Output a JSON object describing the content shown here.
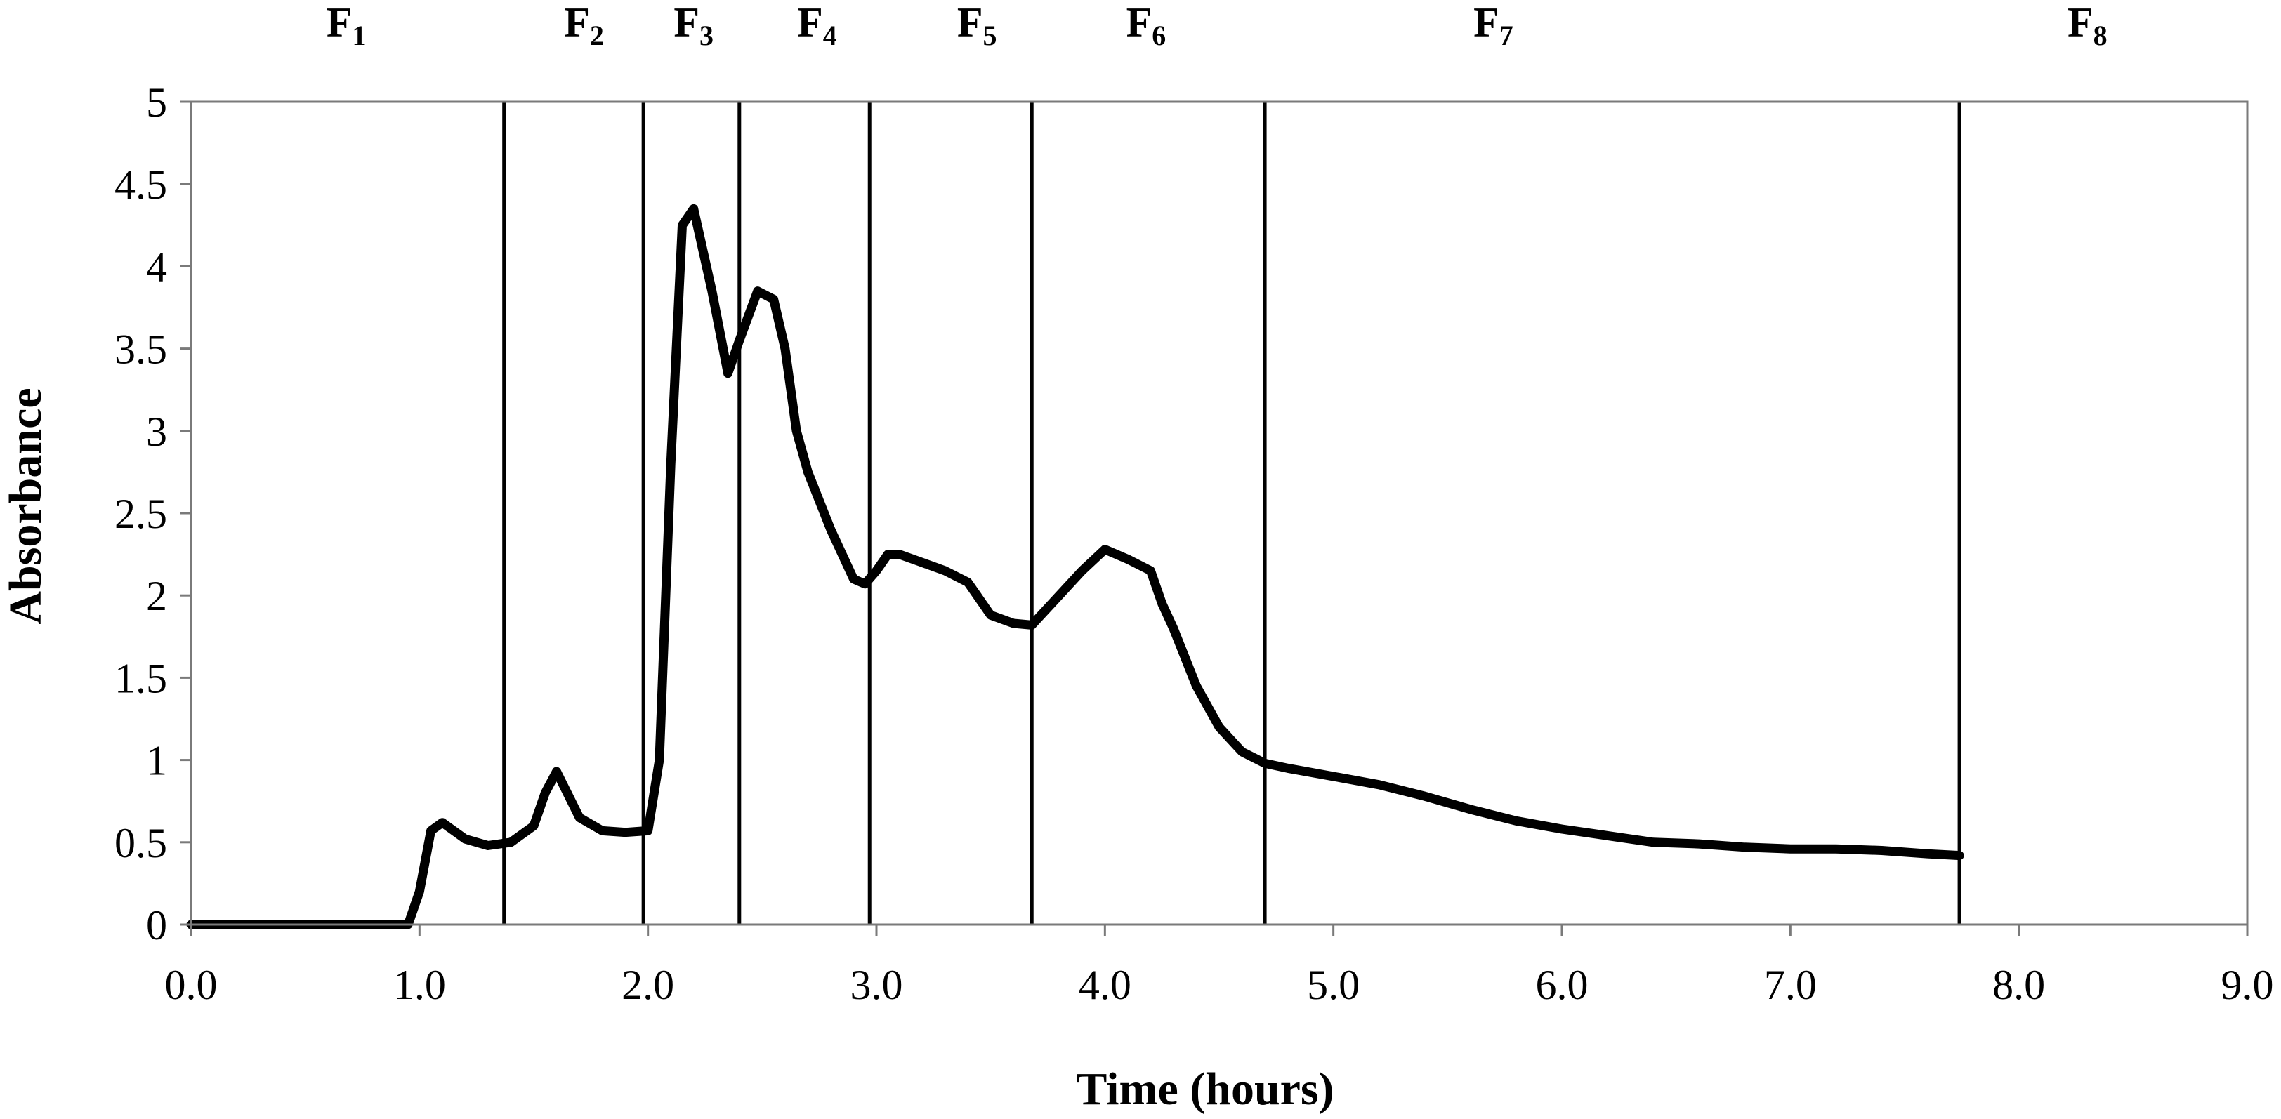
{
  "chart_data": {
    "type": "line",
    "xlabel": "Time (hours)",
    "ylabel": "Absorbance",
    "xlim": [
      0,
      9
    ],
    "ylim": [
      0,
      5
    ],
    "x_ticks": [
      "0.0",
      "1.0",
      "2.0",
      "3.0",
      "4.0",
      "5.0",
      "6.0",
      "7.0",
      "8.0",
      "9.0"
    ],
    "y_ticks": [
      "0",
      "0.5",
      "1",
      "1.5",
      "2",
      "2.5",
      "3",
      "3.5",
      "4",
      "4.5",
      "5"
    ],
    "grid": false,
    "series": [
      {
        "color": "#000000",
        "x": [
          0.0,
          0.1,
          0.3,
          0.5,
          0.7,
          0.9,
          0.95,
          1.0,
          1.05,
          1.1,
          1.2,
          1.3,
          1.4,
          1.5,
          1.55,
          1.6,
          1.7,
          1.8,
          1.9,
          2.0,
          2.05,
          2.1,
          2.15,
          2.2,
          2.28,
          2.35,
          2.4,
          2.48,
          2.55,
          2.6,
          2.65,
          2.7,
          2.8,
          2.9,
          2.95,
          3.0,
          3.05,
          3.1,
          3.2,
          3.3,
          3.4,
          3.5,
          3.6,
          3.68,
          3.8,
          3.9,
          4.0,
          4.1,
          4.2,
          4.25,
          4.3,
          4.4,
          4.5,
          4.6,
          4.7,
          4.8,
          5.0,
          5.2,
          5.4,
          5.6,
          5.8,
          6.0,
          6.2,
          6.4,
          6.6,
          6.8,
          7.0,
          7.2,
          7.4,
          7.6,
          7.74
        ],
        "y": [
          0.0,
          0.0,
          0.0,
          0.0,
          0.0,
          0.0,
          0.0,
          0.2,
          0.57,
          0.62,
          0.52,
          0.48,
          0.5,
          0.6,
          0.8,
          0.93,
          0.65,
          0.57,
          0.56,
          0.57,
          1.0,
          2.8,
          4.25,
          4.35,
          3.85,
          3.35,
          3.55,
          3.85,
          3.8,
          3.5,
          3.0,
          2.75,
          2.4,
          2.1,
          2.07,
          2.15,
          2.25,
          2.25,
          2.2,
          2.15,
          2.08,
          1.88,
          1.83,
          1.82,
          2.0,
          2.15,
          2.28,
          2.22,
          2.15,
          1.95,
          1.8,
          1.45,
          1.2,
          1.05,
          0.98,
          0.95,
          0.9,
          0.85,
          0.78,
          0.7,
          0.63,
          0.58,
          0.54,
          0.5,
          0.49,
          0.47,
          0.46,
          0.46,
          0.45,
          0.43,
          0.42
        ]
      }
    ],
    "fraction_boundaries": [
      1.37,
      1.98,
      2.4,
      2.97,
      3.68,
      4.7,
      7.74
    ],
    "fractions": [
      {
        "main": "F",
        "sub": "1",
        "center": 0.68
      },
      {
        "main": "F",
        "sub": "2",
        "center": 1.72
      },
      {
        "main": "F",
        "sub": "3",
        "center": 2.2
      },
      {
        "main": "F",
        "sub": "4",
        "center": 2.74
      },
      {
        "main": "F",
        "sub": "5",
        "center": 3.44
      },
      {
        "main": "F",
        "sub": "6",
        "center": 4.18
      },
      {
        "main": "F",
        "sub": "7",
        "center": 5.7
      },
      {
        "main": "F",
        "sub": "8",
        "center": 8.3
      }
    ]
  }
}
